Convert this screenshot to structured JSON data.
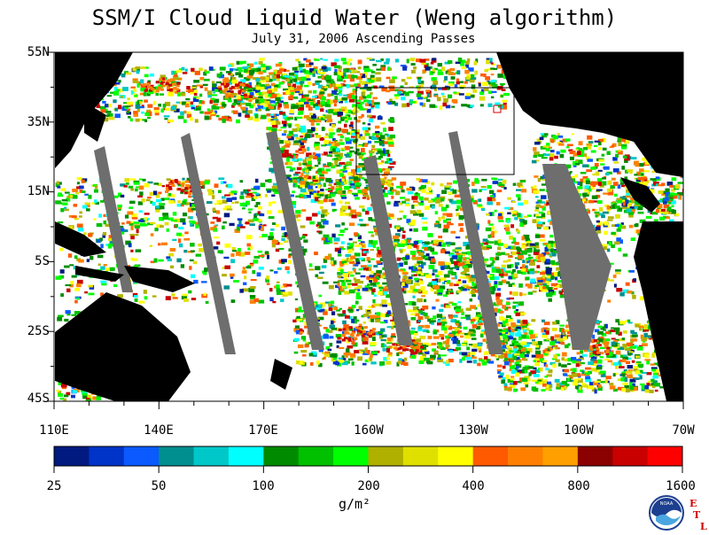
{
  "title": "SSM/I Cloud Liquid Water (Weng algorithm)",
  "subtitle": "July 31, 2006  Ascending Passes",
  "lat_labels": [
    "55N",
    "35N",
    "15N",
    "5S",
    "25S",
    "45S"
  ],
  "lon_labels": [
    "110E",
    "140E",
    "170E",
    "160W",
    "130W",
    "100W",
    "70W"
  ],
  "colorbar": {
    "labels": [
      "25",
      "50",
      "100",
      "200",
      "400",
      "800",
      "1600"
    ],
    "unit": "g/m²",
    "colors": [
      "#001a80",
      "#0033c8",
      "#0a5aff",
      "#008f8f",
      "#00c8c8",
      "#00ffff",
      "#008a00",
      "#00c000",
      "#00ff00",
      "#b0b000",
      "#e0e000",
      "#ffff00",
      "#ff5a00",
      "#ff8000",
      "#ffa000",
      "#8b0000",
      "#c80000",
      "#ff0000"
    ]
  },
  "colors": {
    "land": "#000000",
    "no_data": "#6e6e6e",
    "ocean_clear": "#ffffff"
  },
  "logo": {
    "text": "NOAA",
    "side_letters": [
      "E",
      "T",
      "L"
    ]
  }
}
